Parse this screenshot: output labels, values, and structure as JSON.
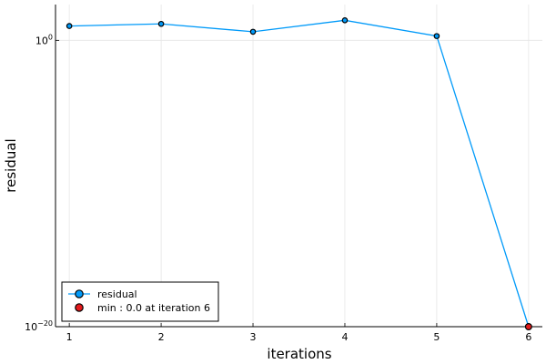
{
  "chart_data": {
    "type": "line",
    "xlabel": "iterations",
    "ylabel": "residual",
    "x_ticks": [
      1,
      2,
      3,
      4,
      5,
      6
    ],
    "y_scale": "log10",
    "y_ticks": [
      {
        "exponent": 0,
        "base": "10",
        "exp_label": "0"
      },
      {
        "exponent": -20,
        "base": "10",
        "exp_label": "−20"
      }
    ],
    "xlim": [
      0.85,
      6.15
    ],
    "ylim_log10": [
      -20,
      2.5
    ],
    "grid": true,
    "legend_position": "bottom-left",
    "series": [
      {
        "name": "residual",
        "color": "#009af9",
        "x": [
          1,
          2,
          3,
          4,
          5,
          6
        ],
        "log10_y": [
          1.0,
          1.15,
          0.6,
          1.4,
          0.3,
          -20
        ]
      }
    ],
    "min_marker": {
      "label": "min : 0.0 at iteration 6",
      "x": 6,
      "log10_y": -20,
      "color": "#e31a1c"
    }
  }
}
